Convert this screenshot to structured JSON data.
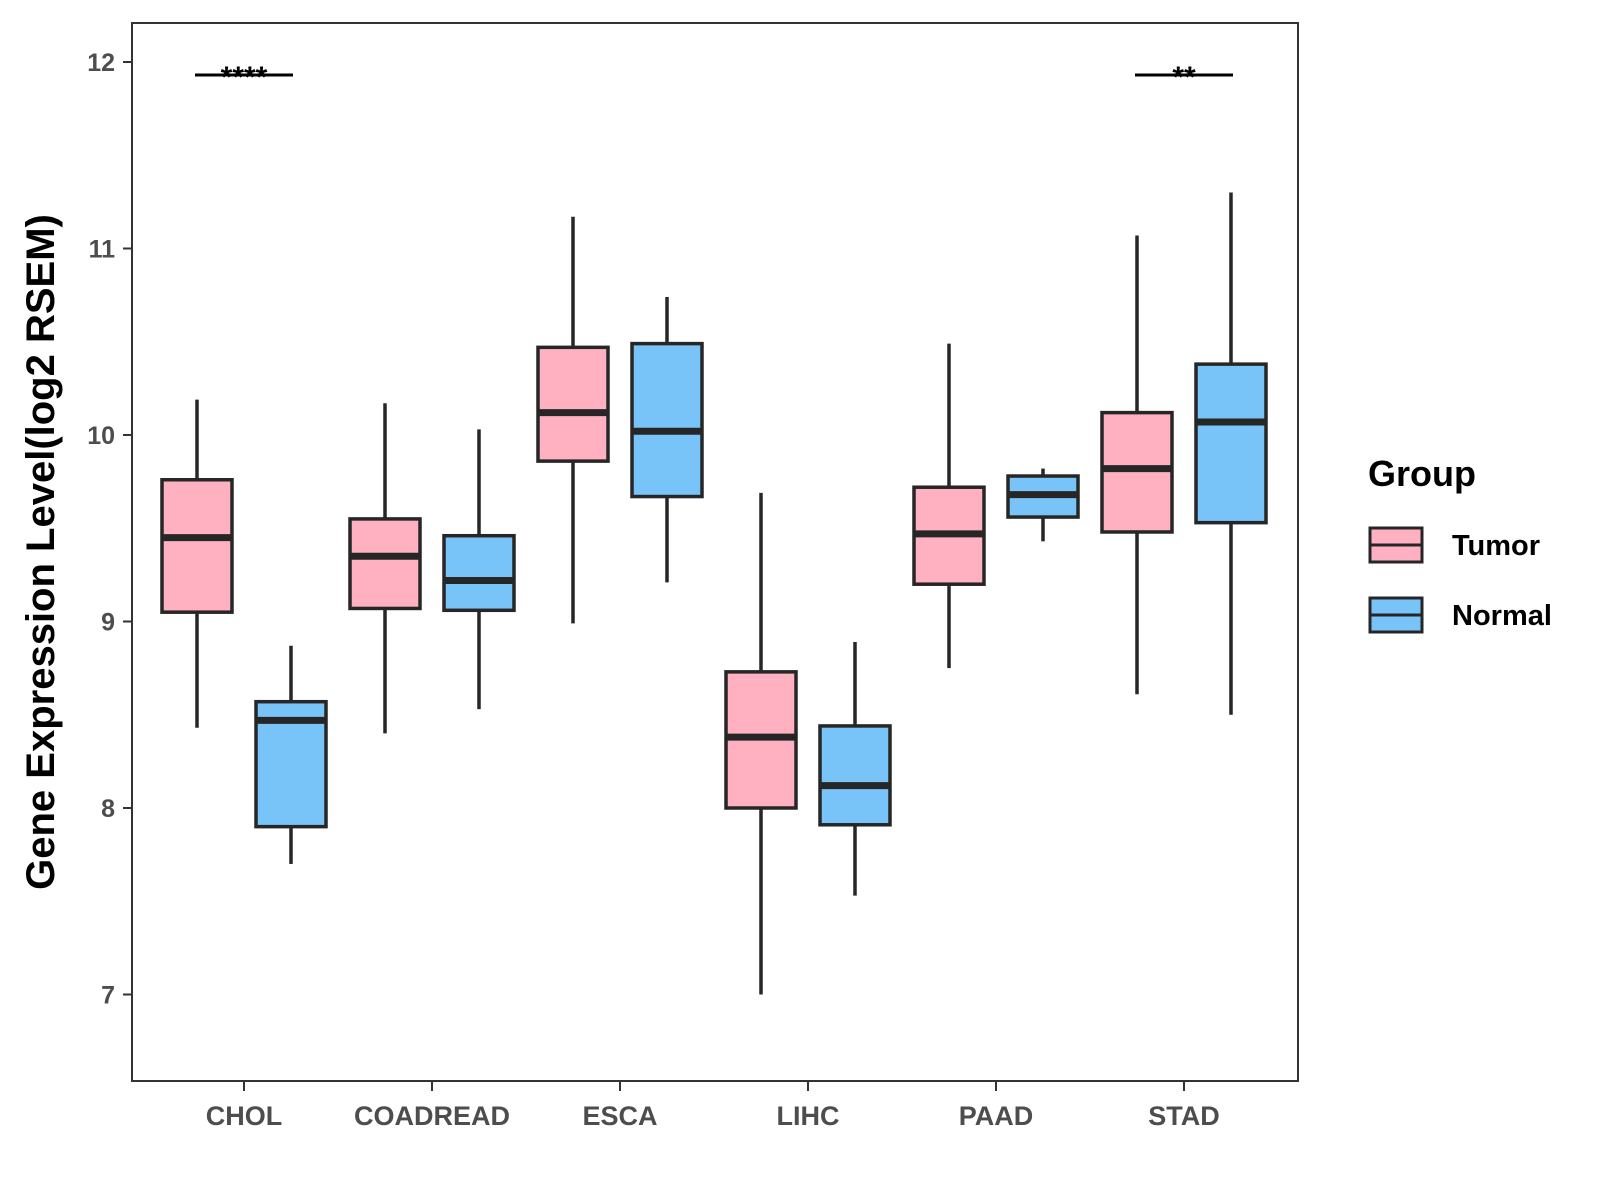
{
  "chart_data": {
    "type": "boxplot",
    "title": "",
    "xlabel": "",
    "ylabel": "Gene Expression Level(log2 RSEM)",
    "ylim": [
      6.55,
      12.2
    ],
    "yticks": [
      7,
      8,
      9,
      10,
      11,
      12
    ],
    "grid": false,
    "legend_position": "right",
    "legend_title": "Group",
    "categories": [
      "CHOL",
      "COADREAD",
      "ESCA",
      "LIHC",
      "PAAD",
      "STAD"
    ],
    "series": [
      {
        "name": "Tumor",
        "color": "#FFB0C1",
        "boxes": [
          {
            "whisker_low": 8.43,
            "q1": 9.05,
            "median": 9.45,
            "q3": 9.76,
            "whisker_high": 10.19
          },
          {
            "whisker_low": 8.4,
            "q1": 9.07,
            "median": 9.35,
            "q3": 9.55,
            "whisker_high": 10.17
          },
          {
            "whisker_low": 8.99,
            "q1": 9.86,
            "median": 10.12,
            "q3": 10.47,
            "whisker_high": 11.17
          },
          {
            "whisker_low": 7.0,
            "q1": 8.0,
            "median": 8.38,
            "q3": 8.73,
            "whisker_high": 9.69
          },
          {
            "whisker_low": 8.75,
            "q1": 9.2,
            "median": 9.47,
            "q3": 9.72,
            "whisker_high": 10.49
          },
          {
            "whisker_low": 8.61,
            "q1": 9.48,
            "median": 9.82,
            "q3": 10.12,
            "whisker_high": 11.07
          }
        ]
      },
      {
        "name": "Normal",
        "color": "#78C3F8",
        "boxes": [
          {
            "whisker_low": 7.7,
            "q1": 7.9,
            "median": 8.47,
            "q3": 8.57,
            "whisker_high": 8.87
          },
          {
            "whisker_low": 8.53,
            "q1": 9.06,
            "median": 9.22,
            "q3": 9.46,
            "whisker_high": 10.03
          },
          {
            "whisker_low": 9.21,
            "q1": 9.67,
            "median": 10.02,
            "q3": 10.49,
            "whisker_high": 10.74
          },
          {
            "whisker_low": 7.53,
            "q1": 7.91,
            "median": 8.12,
            "q3": 8.44,
            "whisker_high": 8.89
          },
          {
            "whisker_low": 9.43,
            "q1": 9.56,
            "median": 9.68,
            "q3": 9.78,
            "whisker_high": 9.82
          },
          {
            "whisker_low": 8.5,
            "q1": 9.53,
            "median": 10.07,
            "q3": 10.38,
            "whisker_high": 11.3
          }
        ]
      }
    ],
    "annotations": [
      {
        "category": "CHOL",
        "label": "****",
        "y": 11.93
      },
      {
        "category": "STAD",
        "label": "**",
        "y": 11.93
      }
    ]
  }
}
